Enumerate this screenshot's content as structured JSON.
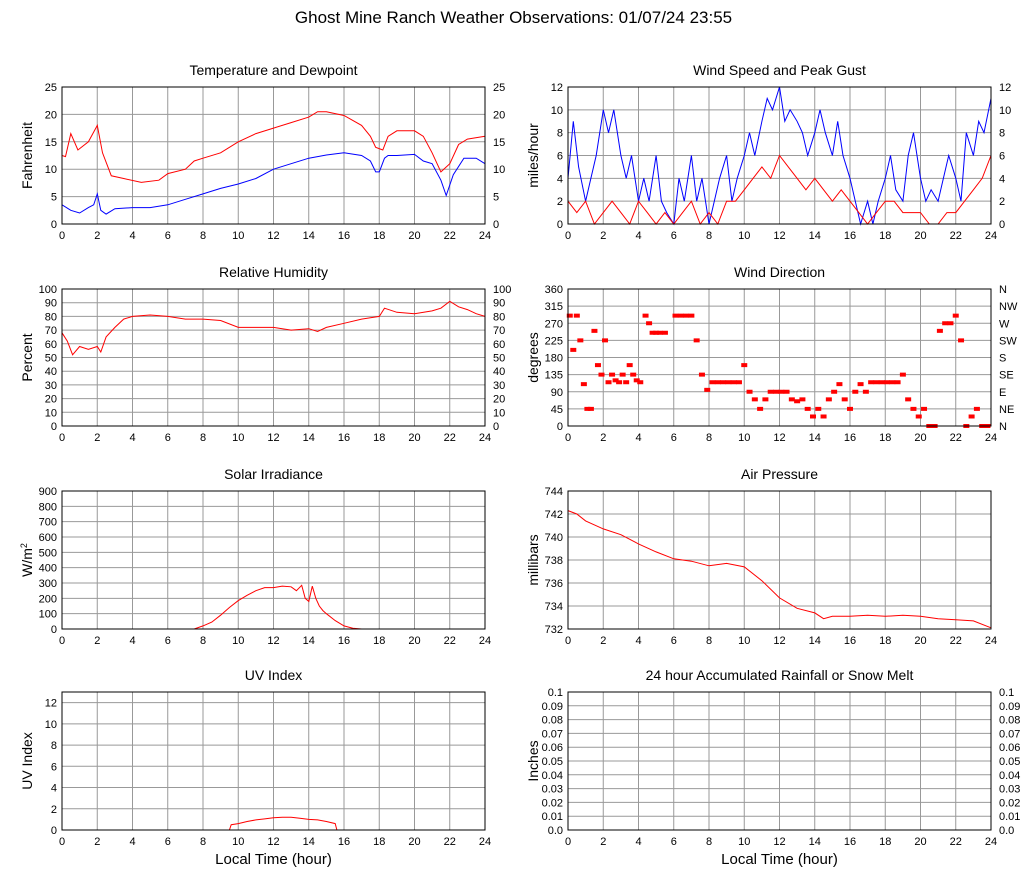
{
  "page": {
    "title": "Ghost Mine Ranch Weather Observations: 01/07/24 23:55"
  },
  "colors": {
    "red": "#ff0000",
    "blue": "#0000ff",
    "grid": "#999999",
    "frame": "#000000"
  },
  "chart_data": [
    {
      "id": "temp",
      "type": "line",
      "title": "Temperature and Dewpoint",
      "ylabel": "Fahrenheit",
      "xlim": [
        0,
        24
      ],
      "ylim": [
        0,
        25
      ],
      "xticks": [
        0,
        2,
        4,
        6,
        8,
        10,
        12,
        14,
        16,
        18,
        20,
        22,
        24
      ],
      "yticks": [
        0,
        5,
        10,
        15,
        20,
        25
      ],
      "right_ticks": [
        "0",
        "5",
        "10",
        "15",
        "20",
        "25"
      ],
      "grid": true,
      "series": [
        {
          "color": "red",
          "x": [
            0,
            0.2,
            0.5,
            0.9,
            1.5,
            2,
            2.3,
            2.8,
            3.5,
            4.5,
            5.5,
            6,
            7,
            7.5,
            8,
            9,
            10,
            11,
            12,
            13,
            14,
            14.5,
            15,
            16,
            17,
            17.5,
            17.8,
            18.2,
            18.5,
            19,
            20,
            20.5,
            21,
            21.5,
            22,
            22.5,
            23,
            24
          ],
          "y": [
            12.5,
            12.3,
            16.5,
            13.5,
            15,
            18,
            13,
            8.8,
            8.3,
            7.6,
            8,
            9.2,
            10,
            11.5,
            12,
            13,
            15,
            16.5,
            17.5,
            18.5,
            19.5,
            20.5,
            20.5,
            19.8,
            18,
            16,
            14,
            13.5,
            16,
            17,
            17,
            16,
            13,
            9.5,
            11,
            14.5,
            15.5,
            16
          ]
        },
        {
          "color": "blue",
          "x": [
            0,
            0.5,
            1,
            1.5,
            1.8,
            2,
            2.2,
            2.5,
            3,
            4,
            5,
            6,
            7,
            8,
            9,
            10,
            11,
            12,
            13,
            14,
            15,
            16,
            17,
            17.5,
            17.8,
            18,
            18.3,
            18.5,
            19,
            20,
            20.5,
            21,
            21.5,
            21.8,
            22.2,
            22.8,
            23.5,
            24
          ],
          "y": [
            3.5,
            2.5,
            2,
            3,
            3.5,
            5.5,
            2.5,
            1.8,
            2.8,
            3,
            3,
            3.5,
            4.5,
            5.5,
            6.5,
            7.3,
            8.3,
            10,
            11,
            12,
            12.6,
            13,
            12.5,
            11.5,
            9.5,
            9.5,
            12,
            12.5,
            12.5,
            12.7,
            11.5,
            11,
            8,
            5.2,
            9,
            12,
            12,
            11
          ]
        }
      ]
    },
    {
      "id": "wind",
      "type": "line",
      "title": "Wind Speed and Peak Gust",
      "ylabel": "miles/hour",
      "xlim": [
        0,
        24
      ],
      "ylim": [
        0,
        12
      ],
      "xticks": [
        0,
        2,
        4,
        6,
        8,
        10,
        12,
        14,
        16,
        18,
        20,
        22,
        24
      ],
      "yticks": [
        0,
        2,
        4,
        6,
        8,
        10,
        12
      ],
      "right_ticks": [
        "0",
        "2",
        "4",
        "6",
        "8",
        "10",
        "12"
      ],
      "grid": true,
      "series": [
        {
          "color": "blue",
          "x": [
            0,
            0.3,
            0.6,
            1,
            1.3,
            1.6,
            2,
            2.3,
            2.6,
            3,
            3.3,
            3.6,
            4,
            4.3,
            4.6,
            5,
            5.3,
            5.6,
            6,
            6.3,
            6.6,
            7,
            7.3,
            7.6,
            8,
            8.3,
            8.6,
            9,
            9.3,
            9.6,
            10,
            10.3,
            10.6,
            11,
            11.3,
            11.6,
            12,
            12.3,
            12.6,
            13,
            13.3,
            13.6,
            14,
            14.3,
            14.6,
            15,
            15.3,
            15.6,
            16,
            16.3,
            16.6,
            17,
            17.3,
            17.6,
            18,
            18.3,
            18.6,
            19,
            19.3,
            19.6,
            20,
            20.3,
            20.6,
            21,
            21.3,
            21.6,
            22,
            22.3,
            22.6,
            23,
            23.3,
            23.6,
            24
          ],
          "y": [
            4,
            9,
            5,
            2,
            4,
            6,
            10,
            8,
            10,
            6,
            4,
            6,
            2,
            4,
            2,
            6,
            2,
            1,
            0,
            4,
            2,
            6,
            2,
            4,
            0,
            2,
            4,
            6,
            2,
            4,
            6,
            8,
            6,
            9,
            11,
            10,
            12,
            9,
            10,
            9,
            8,
            6,
            8,
            10,
            8,
            6,
            9,
            6,
            4,
            2,
            0,
            2,
            0,
            2,
            4,
            6,
            3,
            2,
            6,
            8,
            4,
            2,
            3,
            2,
            4,
            6,
            4,
            2,
            8,
            6,
            9,
            8,
            11
          ]
        },
        {
          "color": "red",
          "x": [
            0,
            0.5,
            1,
            1.5,
            2,
            2.5,
            3,
            3.5,
            4,
            4.5,
            5,
            5.5,
            6,
            6.5,
            7,
            7.5,
            8,
            8.5,
            9,
            9.5,
            10,
            10.5,
            11,
            11.5,
            12,
            12.5,
            13,
            13.5,
            14,
            14.5,
            15,
            15.5,
            16,
            16.5,
            17,
            17.5,
            18,
            18.5,
            19,
            19.5,
            20,
            20.5,
            21,
            21.5,
            22,
            22.5,
            23,
            23.5,
            24
          ],
          "y": [
            2,
            1,
            2,
            0,
            1,
            2,
            1,
            0,
            2,
            1,
            0,
            1,
            0,
            1,
            2,
            0,
            1,
            0,
            2,
            2,
            3,
            4,
            5,
            4,
            6,
            5,
            4,
            3,
            4,
            3,
            2,
            3,
            2,
            1,
            0,
            1,
            2,
            2,
            1,
            1,
            1,
            0,
            0,
            1,
            1,
            2,
            3,
            4,
            6
          ]
        }
      ]
    },
    {
      "id": "rh",
      "type": "line",
      "title": "Relative Humidity",
      "ylabel": "Percent",
      "xlim": [
        0,
        24
      ],
      "ylim": [
        0,
        100
      ],
      "xticks": [
        0,
        2,
        4,
        6,
        8,
        10,
        12,
        14,
        16,
        18,
        20,
        22,
        24
      ],
      "yticks": [
        0,
        10,
        20,
        30,
        40,
        50,
        60,
        70,
        80,
        90,
        100
      ],
      "right_ticks": [
        "0",
        "10",
        "20",
        "30",
        "40",
        "50",
        "60",
        "70",
        "80",
        "90",
        "100"
      ],
      "grid": true,
      "series": [
        {
          "color": "red",
          "x": [
            0,
            0.3,
            0.6,
            1,
            1.5,
            2,
            2.2,
            2.5,
            3,
            3.5,
            4,
            5,
            6,
            7,
            8,
            9,
            10,
            11,
            12,
            13,
            14,
            14.5,
            15,
            16,
            17,
            17.5,
            18,
            18.3,
            19,
            20,
            21,
            21.5,
            22,
            22.5,
            23,
            23.5,
            24
          ],
          "y": [
            68,
            62,
            52,
            58,
            56,
            58,
            54,
            65,
            72,
            78,
            80,
            81,
            80,
            78,
            78,
            77,
            72,
            72,
            72,
            70,
            71,
            69,
            72,
            75,
            78,
            79,
            80,
            86,
            83,
            82,
            84,
            86,
            91,
            87,
            85,
            82,
            80
          ]
        }
      ]
    },
    {
      "id": "wdir",
      "type": "scatter",
      "title": "Wind Direction",
      "ylabel": "degrees",
      "xlim": [
        0,
        24
      ],
      "ylim": [
        0,
        360
      ],
      "xticks": [
        0,
        2,
        4,
        6,
        8,
        10,
        12,
        14,
        16,
        18,
        20,
        22,
        24
      ],
      "yticks": [
        0,
        45,
        90,
        135,
        180,
        225,
        270,
        315,
        360
      ],
      "right_ticks": [
        "N",
        "NE",
        "E",
        "SE",
        "S",
        "SW",
        "W",
        "NW",
        "N"
      ],
      "grid": true,
      "series": [
        {
          "color": "red",
          "x": [
            0.1,
            0.3,
            0.5,
            0.7,
            0.9,
            1.1,
            1.3,
            1.5,
            1.7,
            1.9,
            2.1,
            2.3,
            2.5,
            2.7,
            2.9,
            3.1,
            3.3,
            3.5,
            3.7,
            3.9,
            4.1,
            4.4,
            4.6,
            4.8,
            5,
            5.2,
            5.5,
            6.1,
            6.4,
            6.7,
            7,
            7.3,
            7.6,
            7.9,
            8.2,
            8.5,
            8.8,
            9.1,
            9.4,
            9.7,
            10,
            10.3,
            10.6,
            10.9,
            11.2,
            11.5,
            11.8,
            12.1,
            12.4,
            12.7,
            13,
            13.3,
            13.6,
            13.9,
            14.2,
            14.5,
            14.8,
            15.1,
            15.4,
            15.7,
            16,
            16.3,
            16.6,
            16.9,
            17.2,
            17.5,
            17.8,
            18.1,
            18.4,
            18.7,
            19,
            19.3,
            19.6,
            19.9,
            20.2,
            20.5,
            20.8,
            21.1,
            21.4,
            21.7,
            22,
            22.3,
            22.6,
            22.9,
            23.2,
            23.5,
            23.8
          ],
          "y": [
            290,
            200,
            290,
            225,
            110,
            45,
            45,
            250,
            160,
            135,
            225,
            115,
            135,
            120,
            115,
            135,
            115,
            160,
            135,
            120,
            115,
            290,
            270,
            245,
            245,
            245,
            245,
            290,
            290,
            290,
            290,
            225,
            135,
            95,
            115,
            115,
            115,
            115,
            115,
            115,
            160,
            90,
            70,
            45,
            70,
            90,
            90,
            90,
            90,
            70,
            65,
            70,
            45,
            25,
            45,
            25,
            70,
            90,
            110,
            70,
            45,
            90,
            110,
            90,
            115,
            115,
            115,
            115,
            115,
            115,
            135,
            70,
            45,
            25,
            45,
            0,
            0,
            250,
            270,
            270,
            290,
            225,
            0,
            25,
            45,
            0,
            0
          ]
        }
      ]
    },
    {
      "id": "solar",
      "type": "line",
      "title": "Solar Irradiance",
      "ylabel": "W/m2",
      "xlim": [
        0,
        24
      ],
      "ylim": [
        0,
        900
      ],
      "xticks": [
        0,
        2,
        4,
        6,
        8,
        10,
        12,
        14,
        16,
        18,
        20,
        22,
        24
      ],
      "yticks": [
        0,
        100,
        200,
        300,
        400,
        500,
        600,
        700,
        800,
        900
      ],
      "right_ticks": [],
      "grid": true,
      "series": [
        {
          "color": "red",
          "x": [
            0,
            7.5,
            8,
            8.5,
            9,
            9.5,
            10,
            10.5,
            11,
            11.5,
            12,
            12.5,
            13,
            13.3,
            13.6,
            13.8,
            14,
            14.2,
            14.4,
            14.6,
            14.8,
            15,
            15.5,
            16,
            16.5,
            17,
            24
          ],
          "y": [
            0,
            0,
            20,
            45,
            90,
            140,
            185,
            220,
            250,
            270,
            270,
            280,
            275,
            250,
            285,
            200,
            180,
            280,
            200,
            150,
            120,
            100,
            55,
            20,
            5,
            0,
            0
          ]
        }
      ]
    },
    {
      "id": "pressure",
      "type": "line",
      "title": "Air Pressure",
      "ylabel": "millibars",
      "xlim": [
        0,
        24
      ],
      "ylim": [
        732,
        744
      ],
      "xticks": [
        0,
        2,
        4,
        6,
        8,
        10,
        12,
        14,
        16,
        18,
        20,
        22,
        24
      ],
      "yticks": [
        732,
        734,
        736,
        738,
        740,
        742,
        744
      ],
      "right_ticks": [],
      "grid": true,
      "series": [
        {
          "color": "red",
          "x": [
            0,
            0.5,
            1,
            2,
            3,
            4,
            5,
            6,
            7,
            8,
            9,
            10,
            11,
            12,
            13,
            14,
            14.5,
            15,
            16,
            17,
            18,
            19,
            20,
            21,
            22,
            23,
            24
          ],
          "y": [
            742.3,
            742,
            741.4,
            740.7,
            740.2,
            739.4,
            738.7,
            738.1,
            737.9,
            737.5,
            737.7,
            737.4,
            736.2,
            734.7,
            733.8,
            733.4,
            732.9,
            733.1,
            733.1,
            733.2,
            733.1,
            733.2,
            733.1,
            732.9,
            732.8,
            732.7,
            732.1
          ]
        }
      ]
    },
    {
      "id": "uv",
      "type": "line",
      "title": "UV Index",
      "ylabel": "UV Index",
      "xlabel": "Local Time (hour)",
      "xlim": [
        0,
        24
      ],
      "ylim": [
        0,
        13
      ],
      "xticks": [
        0,
        2,
        4,
        6,
        8,
        10,
        12,
        14,
        16,
        18,
        20,
        22,
        24
      ],
      "yticks": [
        0,
        2,
        4,
        6,
        8,
        10,
        12
      ],
      "right_ticks": [],
      "grid": true,
      "series": [
        {
          "color": "red",
          "x": [
            0,
            9.5,
            9.6,
            10,
            10.5,
            11,
            11.5,
            12,
            12.5,
            13,
            13.5,
            14,
            14.5,
            15,
            15.5,
            15.6,
            24
          ],
          "y": [
            0,
            0,
            0.5,
            0.6,
            0.8,
            0.95,
            1.05,
            1.15,
            1.2,
            1.2,
            1.1,
            1.0,
            0.95,
            0.8,
            0.6,
            0,
            0
          ]
        }
      ]
    },
    {
      "id": "rain",
      "type": "line",
      "title": "24 hour Accumulated Rainfall or Snow Melt",
      "ylabel": "Inches",
      "xlabel": "Local Time (hour)",
      "xlim": [
        0,
        24
      ],
      "ylim": [
        0,
        0.1
      ],
      "xticks": [
        0,
        2,
        4,
        6,
        8,
        10,
        12,
        14,
        16,
        18,
        20,
        22,
        24
      ],
      "yticks": [
        0,
        0.01,
        0.02,
        0.03,
        0.04,
        0.05,
        0.06,
        0.07,
        0.08,
        0.09,
        0.1
      ],
      "ytick_labels": [
        "0.0",
        "0.01",
        "0.02",
        "0.03",
        "0.04",
        "0.05",
        "0.06",
        "0.07",
        "0.08",
        "0.09",
        "0.1"
      ],
      "right_ticks": [
        "0.0",
        "0.01",
        "0.02",
        "0.03",
        "0.04",
        "0.05",
        "0.06",
        "0.07",
        "0.08",
        "0.09",
        "0.1"
      ],
      "grid": true,
      "series": [
        {
          "color": "red",
          "x": [
            0,
            24
          ],
          "y": [
            0,
            0
          ]
        }
      ]
    }
  ]
}
